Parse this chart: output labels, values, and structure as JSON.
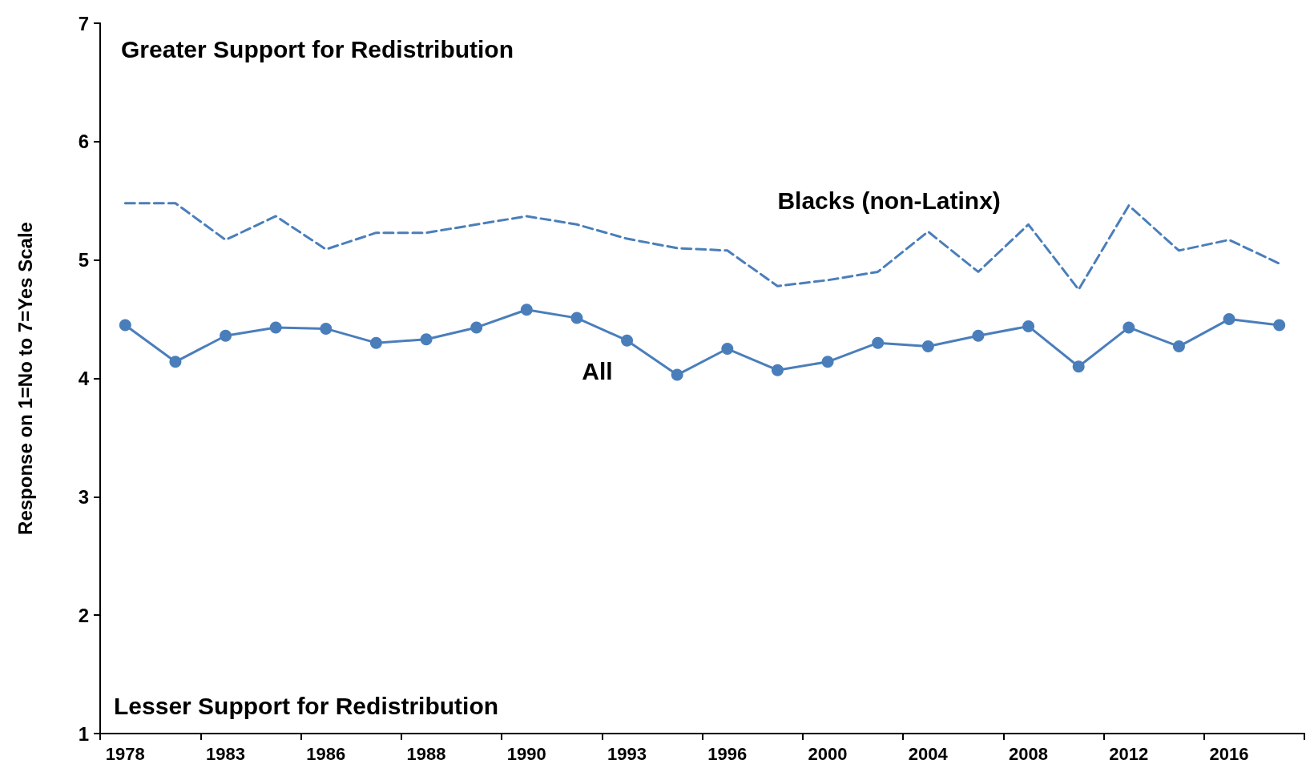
{
  "chart_data": {
    "type": "line",
    "ylabel": "Response on 1=No to 7=Yes Scale",
    "categories": [
      "1978",
      null,
      "1983",
      null,
      "1986",
      null,
      "1988",
      null,
      "1990",
      null,
      "1993",
      null,
      "1996",
      null,
      "2000",
      null,
      "2004",
      null,
      "2008",
      null,
      "2012",
      null,
      "2016",
      null
    ],
    "series": [
      {
        "name": "All",
        "color": "#4a7ebb",
        "marker": "circle",
        "line_style": "solid",
        "values": [
          4.45,
          4.14,
          4.36,
          4.43,
          4.42,
          4.3,
          4.33,
          4.43,
          4.58,
          4.51,
          4.32,
          4.03,
          4.25,
          4.07,
          4.14,
          4.3,
          4.27,
          4.36,
          4.44,
          4.1,
          4.43,
          4.27,
          4.5,
          4.45
        ]
      },
      {
        "name": "Blacks (non-Latinx)",
        "color": "#4a7ebb",
        "marker": "none",
        "line_style": "dashed",
        "values": [
          5.48,
          5.48,
          5.17,
          5.37,
          5.09,
          5.23,
          5.23,
          5.3,
          5.37,
          5.3,
          5.18,
          5.1,
          5.08,
          4.78,
          4.83,
          4.9,
          5.24,
          4.9,
          5.3,
          4.75,
          5.46,
          5.08,
          5.17,
          4.97
        ]
      }
    ],
    "ylim": [
      1,
      7
    ],
    "yticks": [
      1,
      2,
      3,
      4,
      5,
      6,
      7
    ],
    "grid": false,
    "legend": false,
    "annotations": [
      "Greater Support for Redistribution",
      "Lesser Support for Redistribution"
    ]
  }
}
